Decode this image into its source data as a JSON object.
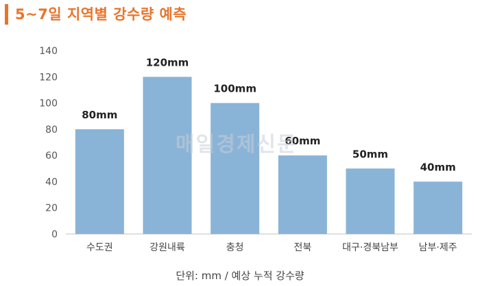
{
  "title": "5~7일 지역별 강수량 예측",
  "watermark": "매일경제신문",
  "footnote": "단위: mm / 예상 누적 강수량",
  "colors": {
    "accent": "#e8742a",
    "bar": "#8ab4d7",
    "axis": "#bfbfbf"
  },
  "chart_data": {
    "type": "bar",
    "categories": [
      "수도권",
      "강원내륙",
      "충청",
      "전북",
      "대구·경북남부",
      "남부·제주"
    ],
    "values": [
      80,
      120,
      100,
      60,
      50,
      40
    ],
    "data_labels": [
      "80mm",
      "120mm",
      "100mm",
      "60mm",
      "50mm",
      "40mm"
    ],
    "yticks": [
      "0",
      "20",
      "40",
      "60",
      "80",
      "100",
      "120",
      "140"
    ],
    "ylim": [
      0,
      140
    ],
    "grid": false
  }
}
